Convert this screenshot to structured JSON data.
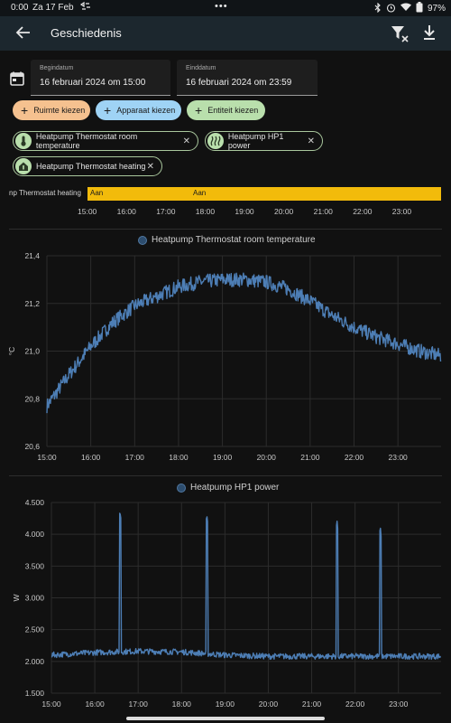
{
  "status": {
    "time": "0:00",
    "date": "Za 17 Feb",
    "dots": "•••",
    "battery": "97%"
  },
  "appbar": {
    "title": "Geschiedenis"
  },
  "dates": {
    "start_label": "Begindatum",
    "start_value": "16 februari 2024 om 15:00",
    "end_label": "Einddatum",
    "end_value": "16 februari 2024 om 23:59"
  },
  "pickers": {
    "area": "Ruimte kiezen",
    "device": "Apparaat kiezen",
    "entity": "Entiteit kiezen"
  },
  "entities": [
    {
      "label": "Heatpump Thermostat room temperature",
      "icon": "thermometer-icon"
    },
    {
      "label": "Heatpump HP1 power",
      "icon": "heat-waves-icon"
    },
    {
      "label": "Heatpump Thermostat heating",
      "icon": "home-thermometer-icon"
    }
  ],
  "timeline": {
    "label": "np Thermostat heating",
    "state1": "Aan",
    "state2": "Aan",
    "ticks": [
      "15:00",
      "16:00",
      "17:00",
      "18:00",
      "19:00",
      "20:00",
      "21:00",
      "22:00",
      "23:00"
    ]
  },
  "colors": {
    "series": "#4d7eb5",
    "timeline_on": "#f2bb0b",
    "chip_area": "#f5c18f",
    "chip_device": "#9fd3f5",
    "chip_entity": "#b9dfac"
  },
  "chart_data": [
    {
      "type": "line",
      "title": "Heatpump Thermostat room temperature",
      "ylabel": "°C",
      "ylim": [
        20.6,
        21.4
      ],
      "yticks": [
        "20,6",
        "20,8",
        "21,0",
        "21,2",
        "21,4"
      ],
      "xticks": [
        "15:00",
        "16:00",
        "17:00",
        "18:00",
        "19:00",
        "20:00",
        "21:00",
        "22:00",
        "23:00"
      ],
      "grid": true,
      "series": [
        {
          "name": "Heatpump Thermostat room temperature",
          "x": [
            "15:00",
            "15:30",
            "16:00",
            "16:30",
            "17:00",
            "17:30",
            "18:00",
            "18:30",
            "19:00",
            "19:30",
            "20:00",
            "20:30",
            "21:00",
            "21:30",
            "22:00",
            "22:30",
            "23:00",
            "23:30",
            "23:59"
          ],
          "values": [
            20.77,
            20.9,
            21.02,
            21.12,
            21.19,
            21.23,
            21.27,
            21.29,
            21.3,
            21.3,
            21.29,
            21.26,
            21.21,
            21.15,
            21.1,
            21.06,
            21.03,
            21.0,
            20.98
          ]
        }
      ]
    },
    {
      "type": "line",
      "title": "Heatpump HP1 power",
      "ylabel": "W",
      "ylim": [
        1500,
        4500
      ],
      "yticks": [
        "1.500",
        "2.000",
        "2.500",
        "3.000",
        "3.500",
        "4.000",
        "4.500"
      ],
      "xticks": [
        "15:00",
        "16:00",
        "17:00",
        "18:00",
        "19:00",
        "20:00",
        "21:00",
        "22:00",
        "23:00"
      ],
      "grid": true,
      "series": [
        {
          "name": "Heatpump HP1 power",
          "x": [
            "15:00",
            "16:00",
            "16:35",
            "17:00",
            "18:00",
            "18:35",
            "19:00",
            "20:00",
            "21:00",
            "21:35",
            "22:00",
            "22:35",
            "23:00",
            "23:59"
          ],
          "values": [
            2100,
            2140,
            4350,
            2160,
            2150,
            4250,
            2100,
            2080,
            2080,
            4180,
            2080,
            4080,
            2080,
            2080
          ]
        }
      ]
    }
  ]
}
